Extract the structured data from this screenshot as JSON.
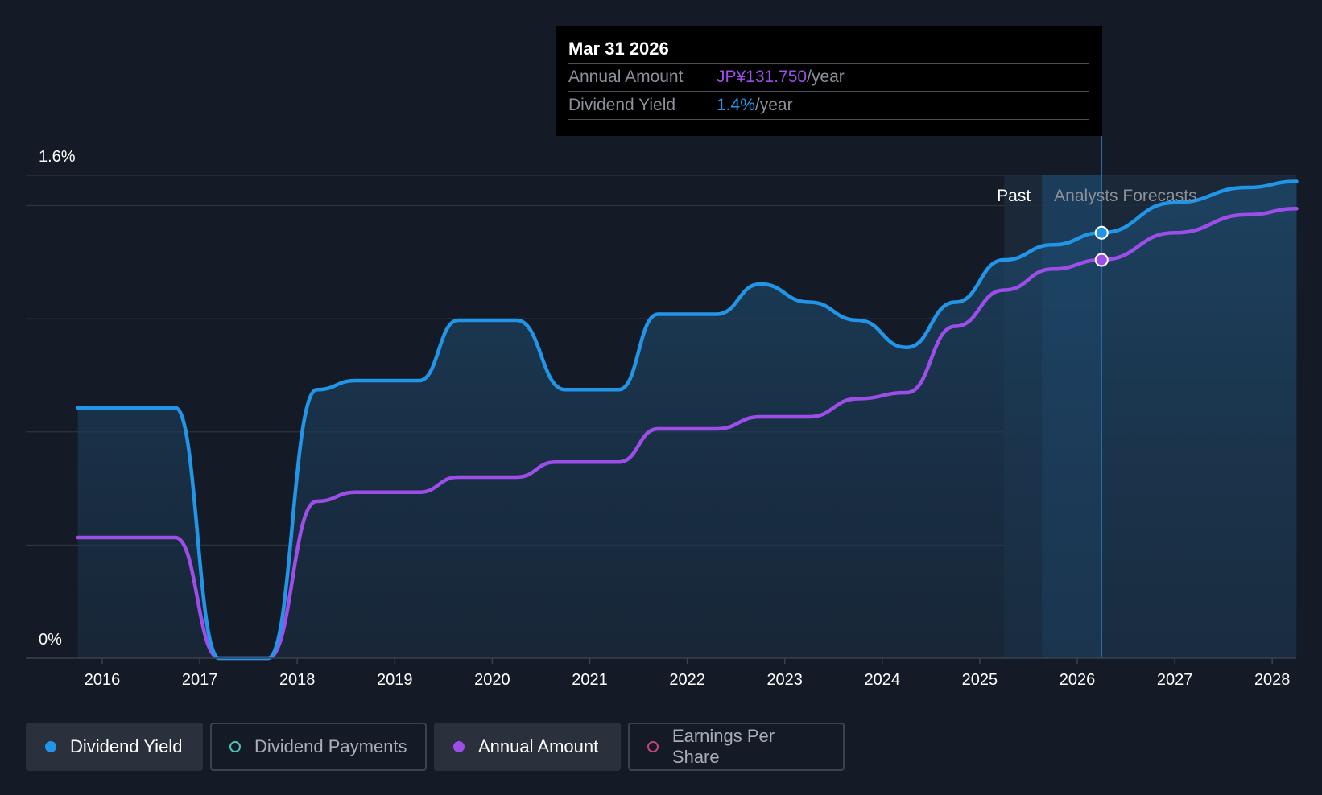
{
  "chart_data": {
    "type": "line",
    "x_ticks": [
      "2016",
      "2017",
      "2018",
      "2019",
      "2020",
      "2021",
      "2022",
      "2023",
      "2024",
      "2025",
      "2026",
      "2027",
      "2028"
    ],
    "y_ticks": [
      "1.6%",
      "0%"
    ],
    "ylim": [
      0,
      1.6
    ],
    "grid": true,
    "past_label": "Past",
    "forecast_label": "Analysts Forecasts",
    "forecast_start": 2025.25,
    "series": [
      {
        "name": "Dividend Yield",
        "color": "#2196e8",
        "filled": true,
        "points": [
          [
            2015.75,
            0.83
          ],
          [
            2016.75,
            0.83
          ],
          [
            2017.2,
            0
          ],
          [
            2017.7,
            0
          ],
          [
            2018.2,
            0.89
          ],
          [
            2018.6,
            0.92
          ],
          [
            2019.25,
            0.92
          ],
          [
            2019.65,
            1.12
          ],
          [
            2020.25,
            1.12
          ],
          [
            2020.75,
            0.89
          ],
          [
            2021.3,
            0.89
          ],
          [
            2021.7,
            1.14
          ],
          [
            2022.3,
            1.14
          ],
          [
            2022.75,
            1.24
          ],
          [
            2023.25,
            1.18
          ],
          [
            2023.75,
            1.12
          ],
          [
            2024.25,
            1.03
          ],
          [
            2024.75,
            1.18
          ],
          [
            2025.25,
            1.32
          ],
          [
            2025.75,
            1.37
          ],
          [
            2026.25,
            1.41
          ],
          [
            2027.0,
            1.51
          ],
          [
            2027.75,
            1.56
          ],
          [
            2028.25,
            1.58
          ]
        ]
      },
      {
        "name": "Annual Amount",
        "color": "#9d4ee8",
        "filled": false,
        "points": [
          [
            2015.75,
            0.4
          ],
          [
            2016.75,
            0.4
          ],
          [
            2017.2,
            0
          ],
          [
            2017.7,
            0
          ],
          [
            2018.2,
            0.52
          ],
          [
            2018.6,
            0.55
          ],
          [
            2019.25,
            0.55
          ],
          [
            2019.65,
            0.6
          ],
          [
            2020.25,
            0.6
          ],
          [
            2020.65,
            0.65
          ],
          [
            2021.3,
            0.65
          ],
          [
            2021.7,
            0.76
          ],
          [
            2022.3,
            0.76
          ],
          [
            2022.75,
            0.8
          ],
          [
            2023.25,
            0.8
          ],
          [
            2023.75,
            0.86
          ],
          [
            2024.25,
            0.88
          ],
          [
            2024.75,
            1.1
          ],
          [
            2025.25,
            1.22
          ],
          [
            2025.75,
            1.29
          ],
          [
            2026.25,
            1.32
          ],
          [
            2027.0,
            1.41
          ],
          [
            2027.75,
            1.47
          ],
          [
            2028.25,
            1.49
          ]
        ]
      }
    ],
    "highlight": {
      "x": 2026.25,
      "yield": 1.41,
      "amount": 1.32
    }
  },
  "tooltip": {
    "date": "Mar 31 2026",
    "annual_amount_label": "Annual Amount",
    "annual_amount_value": "JP¥131.750",
    "annual_amount_unit": "/year",
    "dividend_yield_label": "Dividend Yield",
    "dividend_yield_value": "1.4%",
    "dividend_yield_unit": "/year",
    "amount_color": "#9d4ee8",
    "yield_color": "#2196e8"
  },
  "legend": [
    {
      "label": "Dividend Yield",
      "color": "#2196e8",
      "active": true
    },
    {
      "label": "Dividend Payments",
      "color": "#4fc3b8",
      "active": false
    },
    {
      "label": "Annual Amount",
      "color": "#9d4ee8",
      "active": true
    },
    {
      "label": "Earnings Per Share",
      "color": "#c2457a",
      "active": false
    }
  ]
}
